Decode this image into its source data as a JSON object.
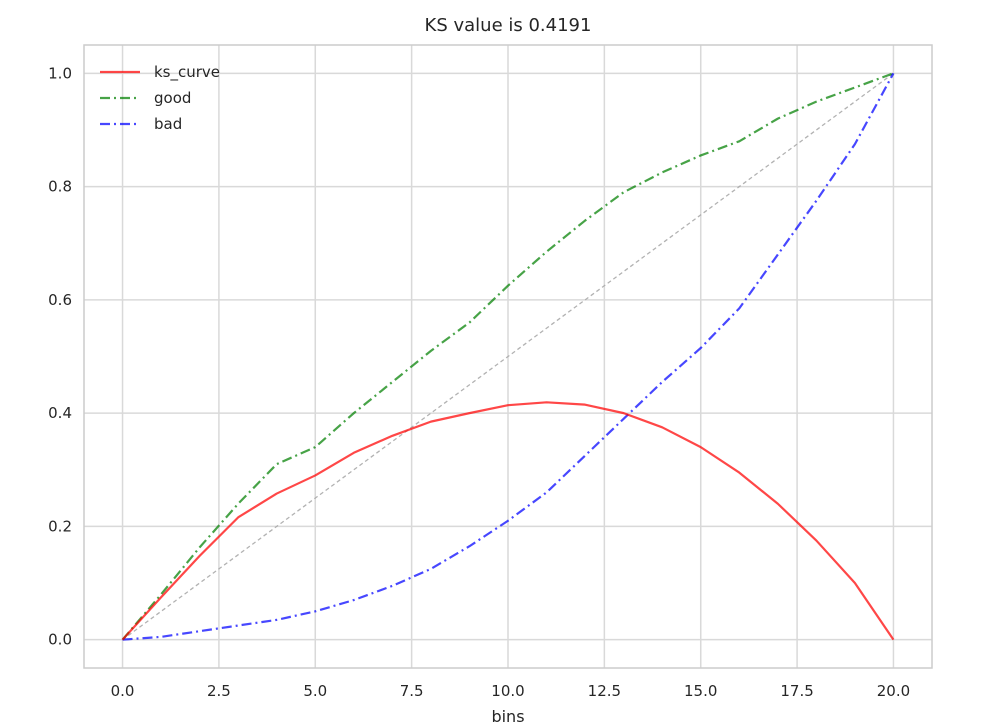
{
  "chart_data": {
    "type": "line",
    "title": "KS value is 0.4191",
    "xlabel": "bins",
    "ylabel": "",
    "xlim": [
      -1.0,
      21.0
    ],
    "ylim": [
      -0.05,
      1.05
    ],
    "xticks": [
      "0.0",
      "2.5",
      "5.0",
      "7.5",
      "10.0",
      "12.5",
      "15.0",
      "17.5",
      "20.0"
    ],
    "yticks": [
      "0.0",
      "0.2",
      "0.4",
      "0.6",
      "0.8",
      "1.0"
    ],
    "grid": true,
    "legend_position": "top-left",
    "x": [
      0,
      1,
      2,
      3,
      4,
      5,
      6,
      7,
      8,
      9,
      10,
      11,
      12,
      13,
      14,
      15,
      16,
      17,
      18,
      19,
      20
    ],
    "series": [
      {
        "name": "ks_curve",
        "color": "#ff0000",
        "style": "solid",
        "values": [
          0.0,
          0.075,
          0.148,
          0.216,
          0.258,
          0.29,
          0.33,
          0.36,
          0.385,
          0.4,
          0.414,
          0.4191,
          0.415,
          0.4,
          0.375,
          0.34,
          0.295,
          0.24,
          0.175,
          0.1,
          0.0
        ]
      },
      {
        "name": "good",
        "color": "#008000",
        "style": "dashdot",
        "values": [
          0.0,
          0.08,
          0.163,
          0.24,
          0.31,
          0.34,
          0.4,
          0.455,
          0.51,
          0.56,
          0.625,
          0.685,
          0.74,
          0.79,
          0.825,
          0.855,
          0.88,
          0.92,
          0.95,
          0.975,
          1.0
        ]
      },
      {
        "name": "bad",
        "color": "#0000ff",
        "style": "dashdot",
        "values": [
          0.0,
          0.005,
          0.015,
          0.025,
          0.035,
          0.05,
          0.07,
          0.095,
          0.125,
          0.165,
          0.21,
          0.26,
          0.325,
          0.39,
          0.455,
          0.515,
          0.585,
          0.68,
          0.775,
          0.875,
          1.0
        ]
      }
    ],
    "reference_line": {
      "x": [
        0,
        20
      ],
      "y": [
        0.0,
        1.0
      ],
      "color": "#aaaaaa",
      "style": "dashed"
    }
  }
}
